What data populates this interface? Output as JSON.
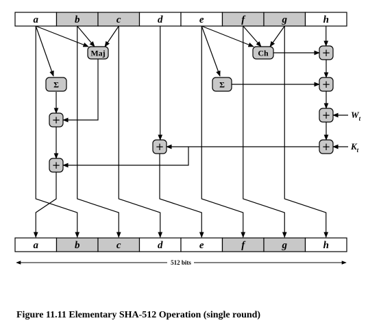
{
  "registers_top": [
    "a",
    "b",
    "c",
    "d",
    "e",
    "f",
    "g",
    "h"
  ],
  "registers_bottom": [
    "a",
    "b",
    "c",
    "d",
    "e",
    "f",
    "g",
    "h"
  ],
  "register_shading": [
    false,
    true,
    true,
    false,
    false,
    true,
    true,
    false
  ],
  "functions": {
    "maj": "Maj",
    "ch": "Ch",
    "sigma_a": "Σ",
    "sigma_e": "Σ",
    "plus": "+"
  },
  "inputs": {
    "w": "W",
    "w_sub": "t",
    "k": "K",
    "k_sub": "t"
  },
  "width_label": "512 bits",
  "caption": "Figure 11.11  Elementary SHA-512 Operation (single round)",
  "colors": {
    "shaded": "#c8c8c8",
    "box": "#ffffff",
    "stroke": "#000000"
  }
}
